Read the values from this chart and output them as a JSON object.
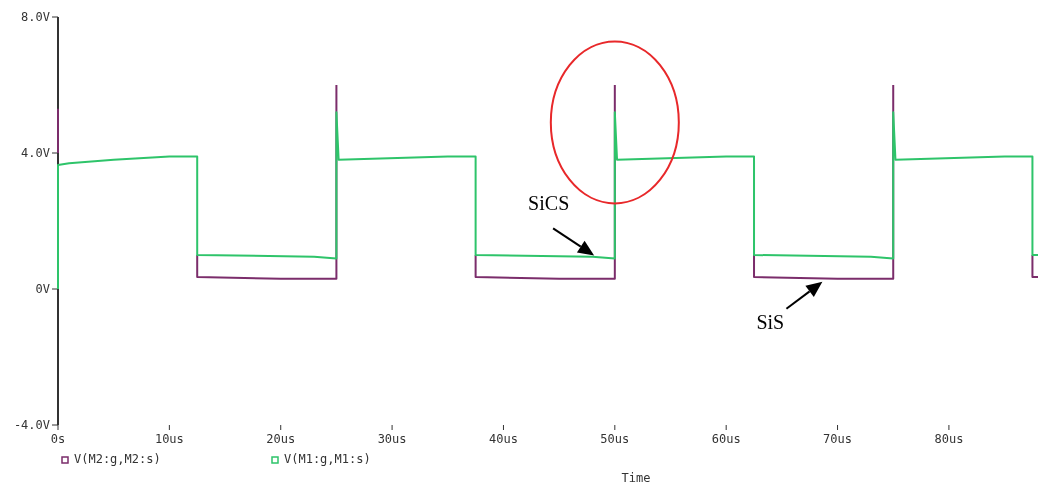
{
  "chart_data": {
    "type": "line",
    "xlabel": "Time",
    "xlim": [
      0,
      88
    ],
    "xticks": [
      {
        "value": 0,
        "label": "0s"
      },
      {
        "value": 10,
        "label": "10us"
      },
      {
        "value": 20,
        "label": "20us"
      },
      {
        "value": 30,
        "label": "30us"
      },
      {
        "value": 40,
        "label": "40us"
      },
      {
        "value": 50,
        "label": "50us"
      },
      {
        "value": 60,
        "label": "60us"
      },
      {
        "value": 70,
        "label": "70us"
      },
      {
        "value": 80,
        "label": "80us"
      }
    ],
    "ylim": [
      -4,
      8
    ],
    "yticks": [
      {
        "value": -4,
        "label": "-4.0V"
      },
      {
        "value": 0,
        "label": "0V"
      },
      {
        "value": 4,
        "label": "4.0V"
      },
      {
        "value": 8,
        "label": "8.0V"
      }
    ],
    "grid": false,
    "legend": "bottom left",
    "series": [
      {
        "name": "V(M2:g,M2:s)",
        "color": "#7b2d6b",
        "x": [
          0,
          0,
          6,
          12.5,
          12.5,
          20,
          25,
          25,
          26,
          37.5,
          37.5,
          45,
          50,
          50,
          51,
          62.5,
          62.5,
          70,
          75,
          75,
          76,
          87.5,
          87.5,
          88
        ],
        "values": [
          5.3,
          4.0,
          null,
          1.0,
          0.35,
          0.3,
          0.3,
          6.0,
          null,
          1.0,
          0.35,
          0.3,
          0.3,
          6.0,
          null,
          1.0,
          0.35,
          0.3,
          0.3,
          6.0,
          null,
          1.0,
          0.35,
          0.35
        ]
      },
      {
        "name": "V(M1:g,M1:s)",
        "color": "#2ec46a",
        "x": [
          0,
          0,
          1,
          5,
          10,
          12.5,
          12.5,
          23,
          25,
          25,
          25.2,
          35,
          37.5,
          37.5,
          48,
          50,
          50,
          50.2,
          60,
          62.5,
          62.5,
          73,
          75,
          75,
          75.2,
          85,
          87.5,
          87.5,
          88
        ],
        "values": [
          0,
          3.65,
          3.7,
          3.8,
          3.9,
          3.9,
          1.0,
          0.95,
          0.9,
          5.2,
          3.8,
          3.9,
          3.9,
          1.0,
          0.95,
          0.9,
          5.2,
          3.8,
          3.9,
          3.9,
          1.0,
          0.95,
          0.9,
          5.2,
          3.8,
          3.9,
          3.9,
          1.0,
          1.0
        ]
      }
    ],
    "annotations": [
      {
        "text": "SiCS",
        "x": 48.5,
        "y": 0.9
      },
      {
        "text": "SiS",
        "x": 69,
        "y": 0.3
      }
    ]
  }
}
